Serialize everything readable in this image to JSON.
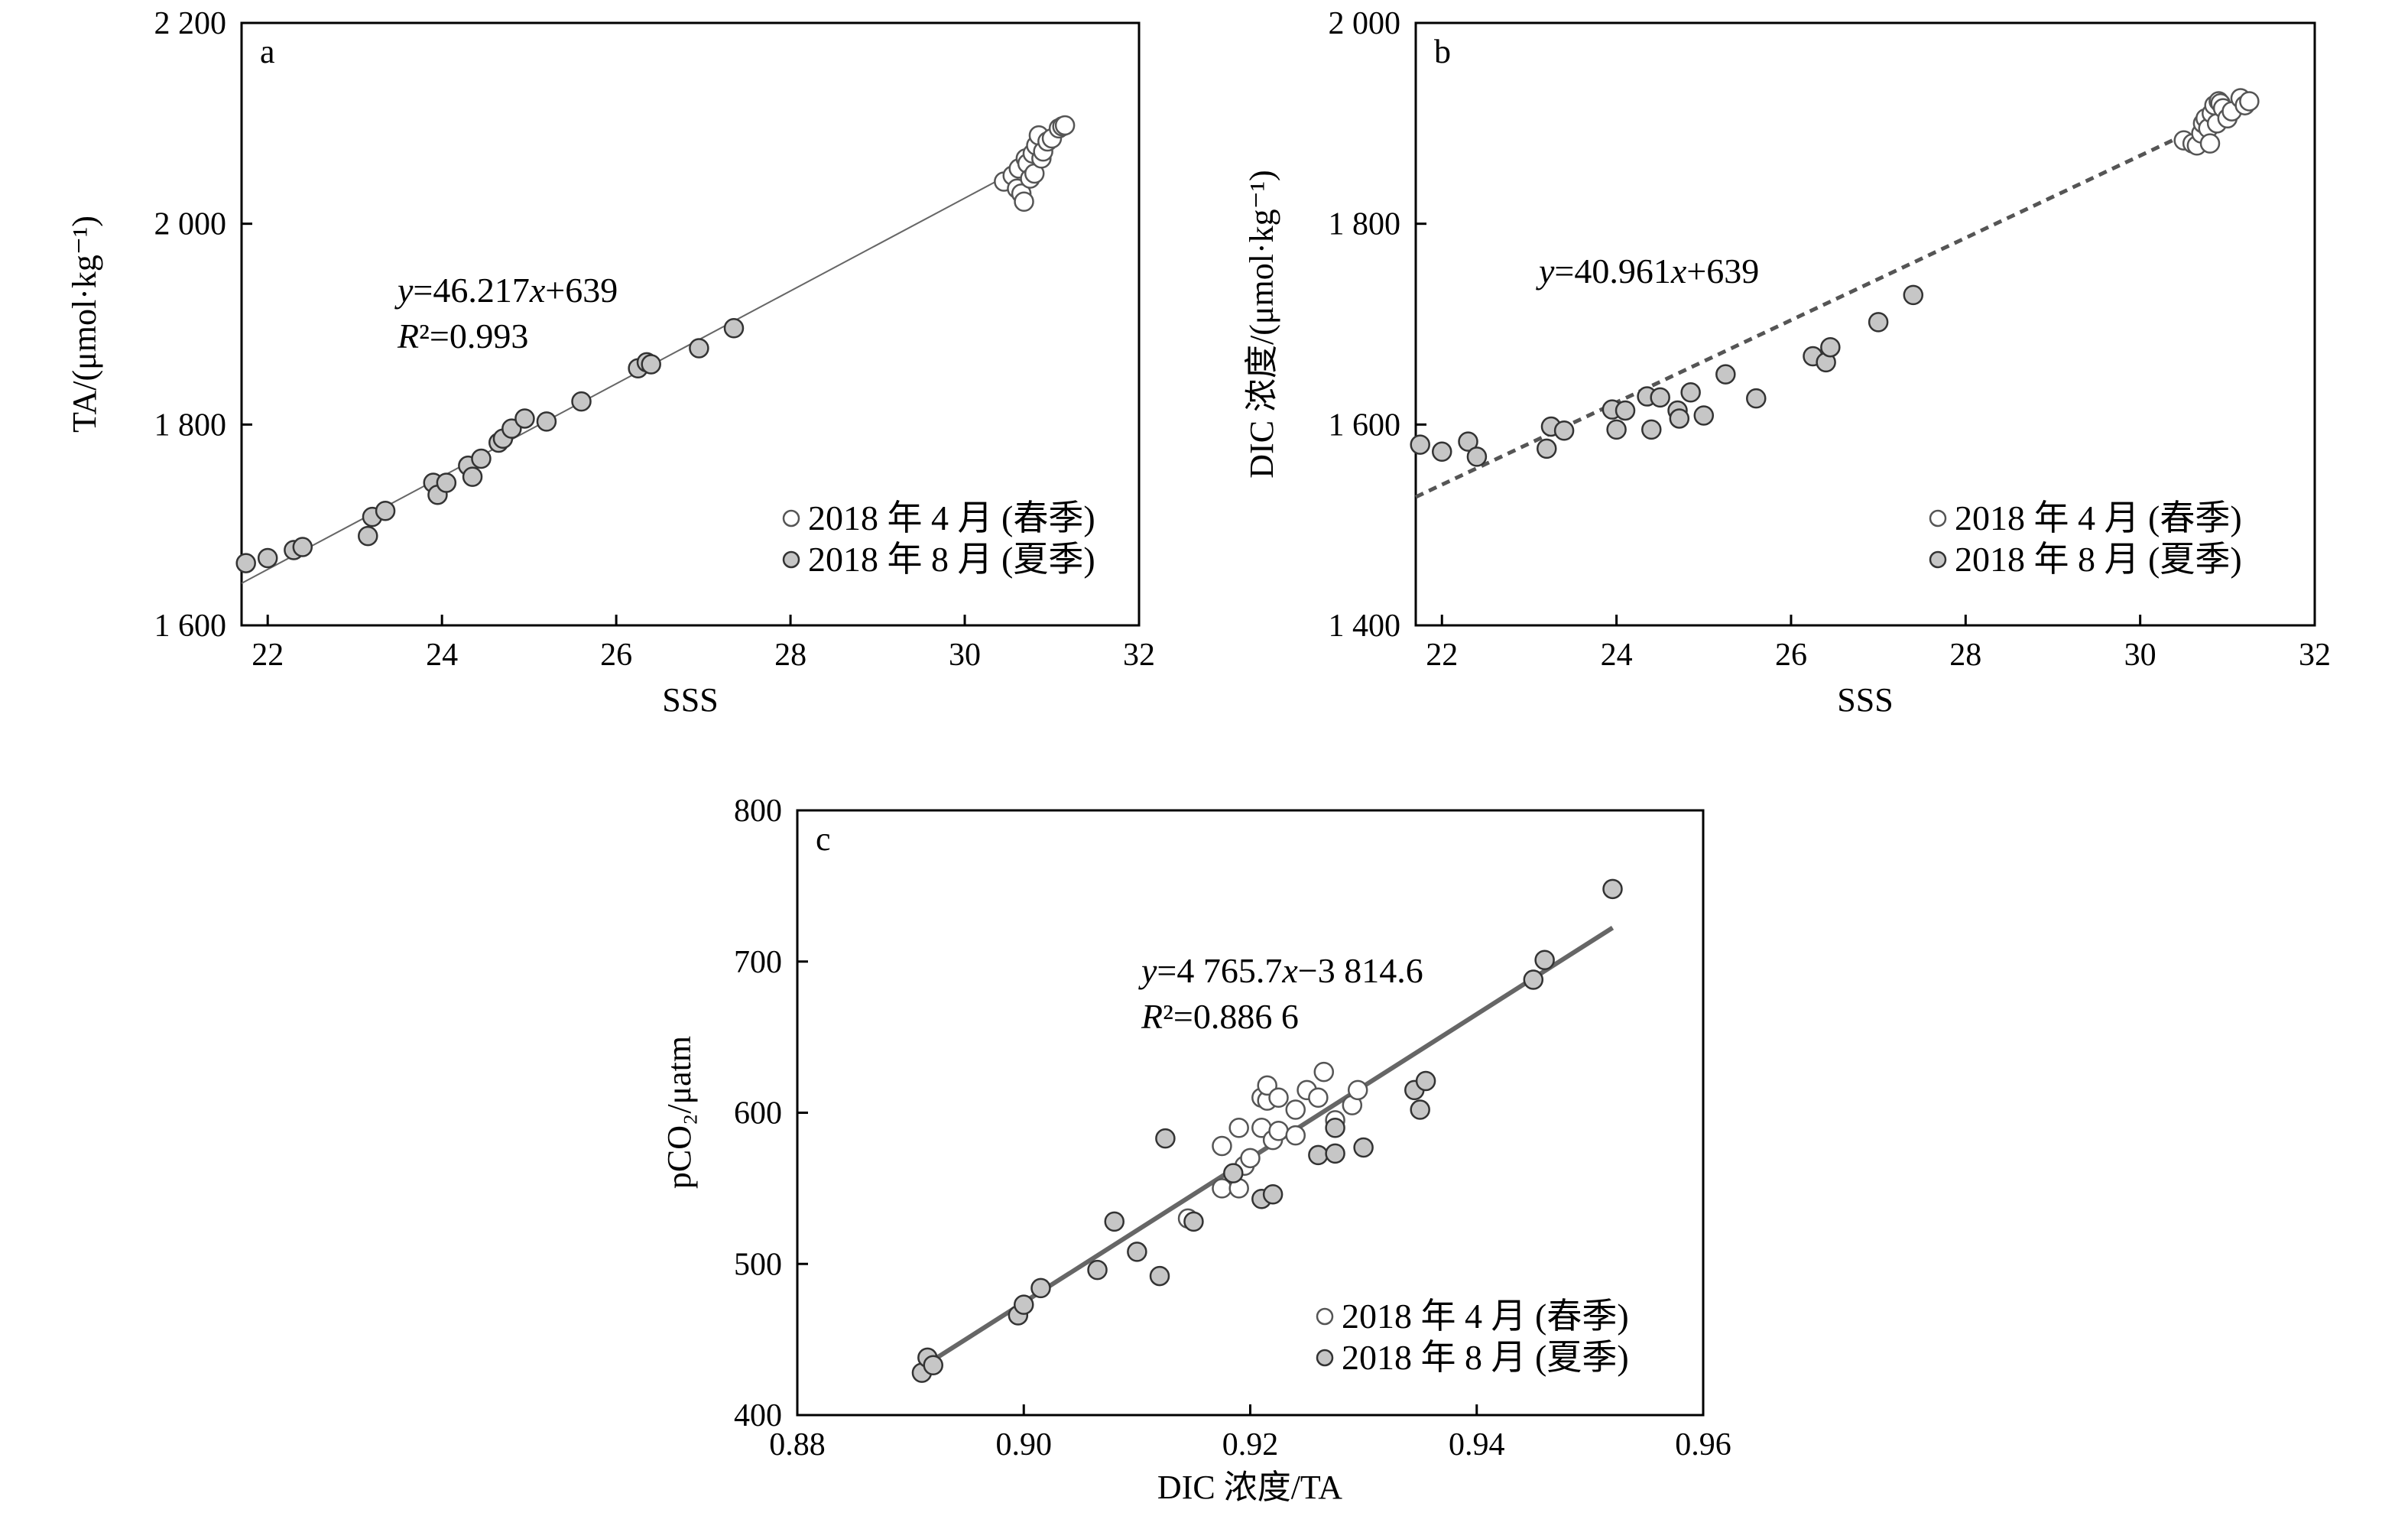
{
  "chart_data": [
    {
      "type": "scatter",
      "panel_label": "a",
      "xlabel": "SSS",
      "ylabel": "TA/(μmol·kg⁻¹)",
      "xlim": [
        21.7,
        32
      ],
      "ylim": [
        1600,
        2200
      ],
      "xticks": [
        22,
        24,
        26,
        28,
        30,
        32
      ],
      "yticks": [
        1600,
        1800,
        2000,
        2200
      ],
      "xtick_labels": [
        "22",
        "24",
        "26",
        "28",
        "30",
        "32"
      ],
      "ytick_labels": [
        "1 600",
        "1 800",
        "2 000",
        "2 200"
      ],
      "grid": false,
      "legend_position": "bottom-right",
      "equation_text": "y=46.217x+639",
      "r2_text": "R²=0.993",
      "fit": {
        "slope": 46.217,
        "intercept": 639,
        "x_range": [
          21.7,
          30.5
        ],
        "style": "solid-thin"
      },
      "series": [
        {
          "name": "2018 年 4 月 (春季)",
          "marker": "open",
          "points": [
            [
              30.45,
              2042
            ],
            [
              30.55,
              2048
            ],
            [
              30.6,
              2035
            ],
            [
              30.62,
              2055
            ],
            [
              30.65,
              2030
            ],
            [
              30.68,
              2022
            ],
            [
              30.7,
              2065
            ],
            [
              30.72,
              2060
            ],
            [
              30.75,
              2045
            ],
            [
              30.78,
              2070
            ],
            [
              30.8,
              2050
            ],
            [
              30.82,
              2078
            ],
            [
              30.85,
              2088
            ],
            [
              30.88,
              2065
            ],
            [
              30.9,
              2072
            ],
            [
              30.95,
              2082
            ],
            [
              31.0,
              2085
            ],
            [
              31.08,
              2095
            ],
            [
              31.12,
              2097
            ],
            [
              31.15,
              2098
            ]
          ]
        },
        {
          "name": "2018 年 8 月 (夏季)",
          "marker": "filled",
          "points": [
            [
              21.75,
              1662
            ],
            [
              22.0,
              1667
            ],
            [
              22.3,
              1675
            ],
            [
              22.4,
              1678
            ],
            [
              23.15,
              1689
            ],
            [
              23.2,
              1708
            ],
            [
              23.35,
              1714
            ],
            [
              23.9,
              1742
            ],
            [
              23.95,
              1730
            ],
            [
              24.05,
              1742
            ],
            [
              24.3,
              1759
            ],
            [
              24.35,
              1748
            ],
            [
              24.45,
              1766
            ],
            [
              24.65,
              1782
            ],
            [
              24.7,
              1786
            ],
            [
              24.8,
              1796
            ],
            [
              24.95,
              1806
            ],
            [
              25.2,
              1803
            ],
            [
              25.6,
              1823
            ],
            [
              26.25,
              1856
            ],
            [
              26.35,
              1862
            ],
            [
              26.4,
              1860
            ],
            [
              26.95,
              1876
            ],
            [
              27.35,
              1896
            ]
          ]
        }
      ]
    },
    {
      "type": "scatter",
      "panel_label": "b",
      "xlabel": "SSS",
      "ylabel": "DIC 浓度/(μmol·kg⁻¹)",
      "xlim": [
        21.7,
        32
      ],
      "ylim": [
        1400,
        2000
      ],
      "xticks": [
        22,
        24,
        26,
        28,
        30,
        32
      ],
      "yticks": [
        1400,
        1600,
        1800,
        2000
      ],
      "xtick_labels": [
        "22",
        "24",
        "26",
        "28",
        "30",
        "32"
      ],
      "ytick_labels": [
        "1 400",
        "1 600",
        "1 800",
        "2 000"
      ],
      "grid": false,
      "legend_position": "bottom-right",
      "equation_text": "y=40.961x+639",
      "fit": {
        "slope": 40.961,
        "intercept": 639,
        "x_range": [
          21.7,
          30.5
        ],
        "style": "dashed"
      },
      "series": [
        {
          "name": "2018 年 4 月 (春季)",
          "marker": "open",
          "points": [
            [
              30.5,
              1883
            ],
            [
              30.6,
              1880
            ],
            [
              30.65,
              1878
            ],
            [
              30.7,
              1890
            ],
            [
              30.72,
              1900
            ],
            [
              30.75,
              1905
            ],
            [
              30.78,
              1895
            ],
            [
              30.8,
              1880
            ],
            [
              30.82,
              1910
            ],
            [
              30.85,
              1918
            ],
            [
              30.88,
              1900
            ],
            [
              30.9,
              1922
            ],
            [
              30.92,
              1920
            ],
            [
              30.95,
              1915
            ],
            [
              31.0,
              1905
            ],
            [
              31.05,
              1912
            ],
            [
              31.15,
              1925
            ],
            [
              31.2,
              1918
            ],
            [
              31.25,
              1922
            ]
          ]
        },
        {
          "name": "2018 年 8 月 (夏季)",
          "marker": "filled",
          "points": [
            [
              21.75,
              1580
            ],
            [
              22.0,
              1573
            ],
            [
              22.3,
              1583
            ],
            [
              22.4,
              1568
            ],
            [
              23.2,
              1576
            ],
            [
              23.25,
              1598
            ],
            [
              23.4,
              1594
            ],
            [
              23.95,
              1615
            ],
            [
              24.0,
              1595
            ],
            [
              24.1,
              1614
            ],
            [
              24.35,
              1628
            ],
            [
              24.4,
              1595
            ],
            [
              24.5,
              1627
            ],
            [
              24.7,
              1614
            ],
            [
              24.72,
              1606
            ],
            [
              24.85,
              1632
            ],
            [
              25.0,
              1609
            ],
            [
              25.25,
              1650
            ],
            [
              25.6,
              1626
            ],
            [
              26.25,
              1668
            ],
            [
              26.4,
              1662
            ],
            [
              26.45,
              1677
            ],
            [
              27.0,
              1702
            ],
            [
              27.4,
              1729
            ]
          ]
        }
      ]
    },
    {
      "type": "scatter",
      "panel_label": "c",
      "xlabel": "DIC 浓度/TA",
      "ylabel": "pCO₂/μatm",
      "xlim": [
        0.88,
        0.96
      ],
      "ylim": [
        400,
        800
      ],
      "xticks": [
        0.88,
        0.9,
        0.92,
        0.94,
        0.96
      ],
      "yticks": [
        400,
        500,
        600,
        700,
        800
      ],
      "xtick_labels": [
        "0.88",
        "0.90",
        "0.92",
        "0.94",
        "0.96"
      ],
      "ytick_labels": [
        "400",
        "500",
        "600",
        "700",
        "800"
      ],
      "grid": false,
      "legend_position": "bottom-right",
      "equation_text": "y=4 765.7x−3 814.6",
      "r2_text": "R²=0.886 6",
      "fit": {
        "slope": 4765.7,
        "intercept": -3814.6,
        "x_range": [
          0.8905,
          0.952
        ],
        "style": "solid-thick"
      },
      "series": [
        {
          "name": "2018 年 4 月 (春季)",
          "marker": "open",
          "points": [
            [
              0.9145,
              530
            ],
            [
              0.9175,
              550
            ],
            [
              0.9175,
              578
            ],
            [
              0.919,
              590
            ],
            [
              0.919,
              550
            ],
            [
              0.9195,
              565
            ],
            [
              0.92,
              570
            ],
            [
              0.921,
              590
            ],
            [
              0.921,
              610
            ],
            [
              0.9215,
              608
            ],
            [
              0.9215,
              618
            ],
            [
              0.922,
              582
            ],
            [
              0.9225,
              610
            ],
            [
              0.9225,
              588
            ],
            [
              0.924,
              602
            ],
            [
              0.924,
              585
            ],
            [
              0.925,
              615
            ],
            [
              0.926,
              610
            ],
            [
              0.9265,
              627
            ],
            [
              0.9275,
              595
            ],
            [
              0.929,
              605
            ],
            [
              0.9295,
              615
            ]
          ]
        },
        {
          "name": "2018 年 8 月 (夏季)",
          "marker": "filled",
          "points": [
            [
              0.891,
              428
            ],
            [
              0.8915,
              438
            ],
            [
              0.892,
              433
            ],
            [
              0.8995,
              466
            ],
            [
              0.9,
              473
            ],
            [
              0.9015,
              484
            ],
            [
              0.9065,
              496
            ],
            [
              0.908,
              528
            ],
            [
              0.91,
              508
            ],
            [
              0.912,
              492
            ],
            [
              0.9125,
              583
            ],
            [
              0.915,
              528
            ],
            [
              0.9185,
              560
            ],
            [
              0.921,
              543
            ],
            [
              0.922,
              546
            ],
            [
              0.926,
              572
            ],
            [
              0.9275,
              590
            ],
            [
              0.9275,
              573
            ],
            [
              0.93,
              577
            ],
            [
              0.9345,
              615
            ],
            [
              0.935,
              602
            ],
            [
              0.9355,
              621
            ],
            [
              0.945,
              688
            ],
            [
              0.946,
              701
            ],
            [
              0.952,
              748
            ]
          ]
        }
      ]
    }
  ]
}
